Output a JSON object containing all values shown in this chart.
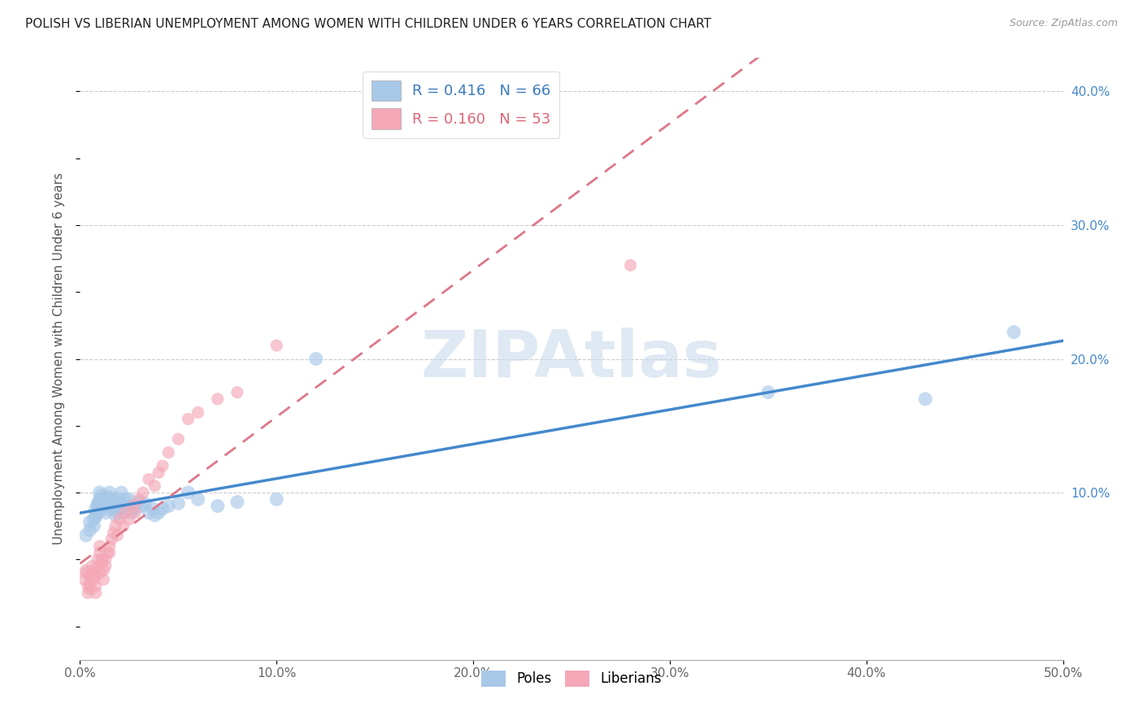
{
  "title": "POLISH VS LIBERIAN UNEMPLOYMENT AMONG WOMEN WITH CHILDREN UNDER 6 YEARS CORRELATION CHART",
  "source": "Source: ZipAtlas.com",
  "ylabel": "Unemployment Among Women with Children Under 6 years",
  "xlim": [
    0.0,
    0.5
  ],
  "ylim": [
    -0.025,
    0.425
  ],
  "xticks": [
    0.0,
    0.1,
    0.2,
    0.3,
    0.4,
    0.5
  ],
  "xticklabels": [
    "0.0%",
    "10.0%",
    "20.0%",
    "30.0%",
    "40.0%",
    "50.0%"
  ],
  "yticks_right": [
    0.1,
    0.2,
    0.3,
    0.4
  ],
  "yticklabels_right": [
    "10.0%",
    "20.0%",
    "30.0%",
    "40.0%"
  ],
  "poles_color": "#a8c8e8",
  "liberians_color": "#f4a8b8",
  "poles_line_color": "#4488cc",
  "liberians_line_color": "#dd7788",
  "legend_poles_label": "R = 0.416   N = 66",
  "legend_liberians_label": "R = 0.160   N = 53",
  "watermark": "ZIPAtlas",
  "poles_x": [
    0.003,
    0.005,
    0.005,
    0.007,
    0.007,
    0.008,
    0.008,
    0.008,
    0.009,
    0.009,
    0.009,
    0.01,
    0.01,
    0.01,
    0.01,
    0.01,
    0.011,
    0.011,
    0.012,
    0.012,
    0.013,
    0.013,
    0.013,
    0.014,
    0.014,
    0.014,
    0.015,
    0.015,
    0.015,
    0.016,
    0.017,
    0.017,
    0.018,
    0.018,
    0.019,
    0.019,
    0.02,
    0.02,
    0.021,
    0.022,
    0.022,
    0.023,
    0.025,
    0.025,
    0.026,
    0.027,
    0.028,
    0.03,
    0.031,
    0.033,
    0.035,
    0.037,
    0.038,
    0.04,
    0.042,
    0.045,
    0.05,
    0.055,
    0.06,
    0.07,
    0.08,
    0.1,
    0.12,
    0.35,
    0.43,
    0.475
  ],
  "poles_y": [
    0.068,
    0.072,
    0.078,
    0.075,
    0.08,
    0.082,
    0.083,
    0.088,
    0.085,
    0.09,
    0.092,
    0.088,
    0.09,
    0.093,
    0.095,
    0.1,
    0.092,
    0.098,
    0.09,
    0.095,
    0.085,
    0.09,
    0.095,
    0.088,
    0.092,
    0.097,
    0.09,
    0.095,
    0.1,
    0.093,
    0.088,
    0.095,
    0.083,
    0.09,
    0.085,
    0.092,
    0.088,
    0.095,
    0.1,
    0.09,
    0.085,
    0.095,
    0.09,
    0.095,
    0.085,
    0.09,
    0.088,
    0.093,
    0.09,
    0.092,
    0.085,
    0.088,
    0.083,
    0.085,
    0.088,
    0.09,
    0.092,
    0.1,
    0.095,
    0.09,
    0.093,
    0.095,
    0.2,
    0.175,
    0.17,
    0.22
  ],
  "liberians_x": [
    0.002,
    0.003,
    0.003,
    0.004,
    0.004,
    0.005,
    0.005,
    0.005,
    0.006,
    0.006,
    0.007,
    0.007,
    0.008,
    0.008,
    0.008,
    0.009,
    0.009,
    0.01,
    0.01,
    0.01,
    0.011,
    0.011,
    0.012,
    0.012,
    0.013,
    0.013,
    0.014,
    0.015,
    0.015,
    0.016,
    0.017,
    0.018,
    0.019,
    0.02,
    0.022,
    0.023,
    0.025,
    0.027,
    0.028,
    0.03,
    0.032,
    0.035,
    0.038,
    0.04,
    0.042,
    0.045,
    0.05,
    0.055,
    0.06,
    0.07,
    0.08,
    0.1,
    0.28
  ],
  "liberians_y": [
    0.035,
    0.04,
    0.042,
    0.03,
    0.025,
    0.038,
    0.032,
    0.028,
    0.045,
    0.04,
    0.035,
    0.042,
    0.03,
    0.025,
    0.038,
    0.045,
    0.05,
    0.04,
    0.055,
    0.06,
    0.05,
    0.048,
    0.035,
    0.042,
    0.05,
    0.045,
    0.055,
    0.06,
    0.055,
    0.065,
    0.07,
    0.075,
    0.068,
    0.08,
    0.075,
    0.085,
    0.08,
    0.09,
    0.085,
    0.095,
    0.1,
    0.11,
    0.105,
    0.115,
    0.12,
    0.13,
    0.14,
    0.155,
    0.16,
    0.17,
    0.175,
    0.21,
    0.27
  ]
}
